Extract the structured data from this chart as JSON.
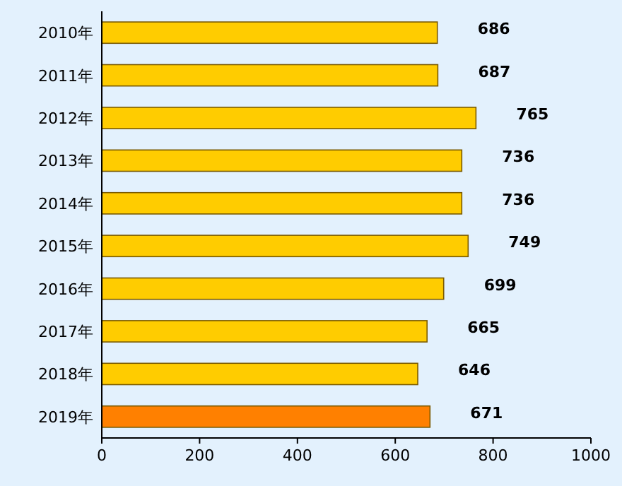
{
  "chart_data": {
    "type": "bar",
    "orientation": "horizontal",
    "categories": [
      "2010年",
      "2011年",
      "2012年",
      "2013年",
      "2014年",
      "2015年",
      "2016年",
      "2017年",
      "2018年",
      "2019年"
    ],
    "values": [
      686,
      687,
      765,
      736,
      736,
      749,
      699,
      665,
      646,
      671
    ],
    "colors": [
      "#ffcc00",
      "#ffcc00",
      "#ffcc00",
      "#ffcc00",
      "#ffcc00",
      "#ffcc00",
      "#ffcc00",
      "#ffcc00",
      "#ffcc00",
      "#ff8000"
    ],
    "xlim": [
      0,
      1000
    ],
    "xticks": [
      0,
      200,
      400,
      600,
      800,
      1000
    ],
    "data_labels": true
  }
}
